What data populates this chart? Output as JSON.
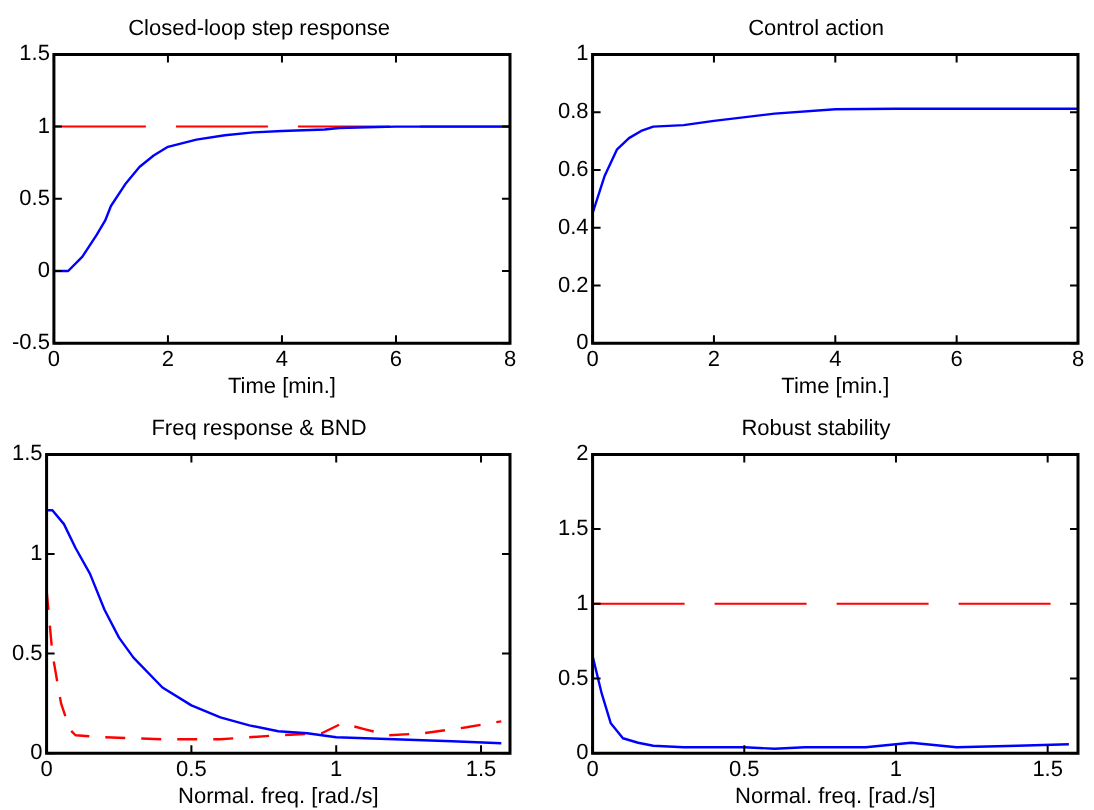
{
  "chart_data": [
    {
      "type": "line",
      "title": "Closed-loop step response",
      "xlabel": "Time [min.]",
      "xlim": [
        0,
        8
      ],
      "xticks": [
        0,
        2,
        4,
        6,
        8
      ],
      "ylim": [
        -0.5,
        1.5
      ],
      "yticks": [
        -0.5,
        0,
        0.5,
        1,
        1.5
      ],
      "grid": false,
      "legend": false,
      "ref_lines": [
        {
          "axis": "y",
          "value": 1,
          "color": "#ff0000",
          "line_style": "dashed"
        }
      ],
      "series": [
        {
          "color": "#0000ff",
          "x": [
            0,
            0.25,
            0.5,
            0.75,
            0.9,
            1,
            1.25,
            1.5,
            1.75,
            2,
            2.5,
            3,
            3.5,
            4,
            4.75,
            5,
            6,
            8
          ],
          "values": [
            0,
            0,
            0.1,
            0.25,
            0.35,
            0.45,
            0.6,
            0.72,
            0.8,
            0.86,
            0.91,
            0.94,
            0.96,
            0.97,
            0.98,
            0.99,
            1,
            1
          ]
        }
      ]
    },
    {
      "type": "line",
      "title": "Control action",
      "xlabel": "Time [min.]",
      "xlim": [
        0,
        8
      ],
      "xticks": [
        0,
        2,
        4,
        6,
        8
      ],
      "ylim": [
        0,
        1
      ],
      "yticks": [
        0,
        0.2,
        0.4,
        0.6,
        0.8,
        1
      ],
      "grid": false,
      "legend": false,
      "series": [
        {
          "color": "#0000ff",
          "x": [
            0,
            0.2,
            0.4,
            0.6,
            0.8,
            1,
            1.5,
            2,
            3,
            4,
            5,
            8
          ],
          "values": [
            0.45,
            0.58,
            0.67,
            0.71,
            0.735,
            0.75,
            0.755,
            0.77,
            0.795,
            0.81,
            0.812,
            0.812
          ]
        }
      ]
    },
    {
      "type": "line",
      "title": "Freq response & BND",
      "xlabel": "Normal. freq. [rad./s]",
      "xlim": [
        0,
        1.6
      ],
      "xticks": [
        0,
        0.5,
        1,
        1.5
      ],
      "ylim": [
        0,
        1.5
      ],
      "yticks": [
        0,
        0.5,
        1,
        1.5
      ],
      "grid": false,
      "legend": false,
      "series": [
        {
          "color": "#0000ff",
          "line_style": "solid",
          "x": [
            0,
            0.02,
            0.06,
            0.1,
            0.15,
            0.2,
            0.25,
            0.3,
            0.4,
            0.5,
            0.6,
            0.7,
            0.8,
            0.9,
            1,
            1.2,
            1.4,
            1.57
          ],
          "values": [
            1.22,
            1.22,
            1.15,
            1.03,
            0.9,
            0.72,
            0.58,
            0.48,
            0.33,
            0.24,
            0.18,
            0.14,
            0.11,
            0.1,
            0.08,
            0.07,
            0.06,
            0.05
          ]
        },
        {
          "color": "#ff0000",
          "line_style": "dashed",
          "x": [
            0,
            0.02,
            0.05,
            0.08,
            0.1,
            0.2,
            0.4,
            0.6,
            0.8,
            0.95,
            1.02,
            1.1,
            1.18,
            1.3,
            1.45,
            1.57
          ],
          "values": [
            0.82,
            0.5,
            0.25,
            0.12,
            0.09,
            0.08,
            0.07,
            0.07,
            0.09,
            0.1,
            0.15,
            0.12,
            0.09,
            0.1,
            0.13,
            0.16
          ]
        }
      ]
    },
    {
      "type": "line",
      "title": "Robust stability",
      "xlabel": "Normal. freq. [rad./s]",
      "xlim": [
        0,
        1.6
      ],
      "xticks": [
        0,
        0.5,
        1,
        1.5
      ],
      "ylim": [
        0,
        2
      ],
      "yticks": [
        0,
        0.5,
        1,
        1.5,
        2
      ],
      "grid": false,
      "legend": false,
      "ref_lines": [
        {
          "axis": "y",
          "value": 1,
          "color": "#ff0000",
          "line_style": "dashed"
        }
      ],
      "series": [
        {
          "color": "#0000ff",
          "x": [
            0,
            0.03,
            0.06,
            0.1,
            0.15,
            0.2,
            0.3,
            0.5,
            0.6,
            0.7,
            0.9,
            1,
            1.05,
            1.2,
            1.4,
            1.57
          ],
          "values": [
            0.65,
            0.4,
            0.2,
            0.1,
            0.07,
            0.05,
            0.04,
            0.04,
            0.03,
            0.04,
            0.04,
            0.06,
            0.07,
            0.04,
            0.05,
            0.06
          ]
        }
      ]
    }
  ]
}
